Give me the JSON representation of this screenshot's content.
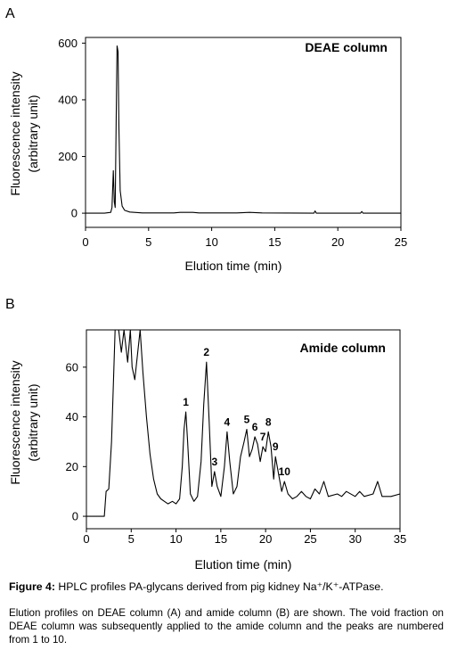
{
  "chart_data": [
    {
      "panel_label": "A",
      "type": "line",
      "title": "DEAE column",
      "xlabel": "Elution time (min)",
      "ylabel_lines": [
        "Fluorescence intensity",
        "(arbitrary unit)"
      ],
      "xlim": [
        0,
        25
      ],
      "ylim": [
        -50,
        620
      ],
      "x_ticks": [
        0,
        5,
        10,
        15,
        20,
        25
      ],
      "y_ticks": [
        0,
        200,
        400,
        600
      ],
      "grid": false,
      "trace": [
        [
          0,
          0
        ],
        [
          1.5,
          0
        ],
        [
          2.0,
          3
        ],
        [
          2.1,
          20
        ],
        [
          2.2,
          150
        ],
        [
          2.28,
          40
        ],
        [
          2.35,
          20
        ],
        [
          2.42,
          300
        ],
        [
          2.5,
          590
        ],
        [
          2.58,
          570
        ],
        [
          2.65,
          300
        ],
        [
          2.75,
          80
        ],
        [
          2.9,
          25
        ],
        [
          3.1,
          10
        ],
        [
          3.5,
          4
        ],
        [
          4.5,
          1
        ],
        [
          7,
          1
        ],
        [
          7.5,
          3
        ],
        [
          8.5,
          3
        ],
        [
          9,
          1
        ],
        [
          12,
          1
        ],
        [
          13,
          3
        ],
        [
          14,
          1
        ],
        [
          18.1,
          0
        ],
        [
          18.2,
          8
        ],
        [
          18.3,
          0
        ],
        [
          21.8,
          0
        ],
        [
          21.9,
          6
        ],
        [
          22.0,
          0
        ],
        [
          25,
          0
        ]
      ]
    },
    {
      "panel_label": "B",
      "type": "line",
      "title": "Amide column",
      "xlabel": "Elution time (min)",
      "ylabel_lines": [
        "Fluorescence intensity",
        "(arbitrary unit)"
      ],
      "xlim": [
        0,
        35
      ],
      "ylim": [
        -5,
        75
      ],
      "x_ticks": [
        0,
        5,
        10,
        15,
        20,
        25,
        30,
        35
      ],
      "y_ticks": [
        0,
        20,
        40,
        60
      ],
      "grid": false,
      "trace": [
        [
          0,
          0
        ],
        [
          2,
          0
        ],
        [
          2.2,
          10
        ],
        [
          2.5,
          11
        ],
        [
          2.8,
          30
        ],
        [
          3.2,
          75
        ],
        [
          3.6,
          75
        ],
        [
          3.9,
          66
        ],
        [
          4.2,
          75
        ],
        [
          4.6,
          62
        ],
        [
          4.9,
          75
        ],
        [
          5.1,
          60
        ],
        [
          5.4,
          55
        ],
        [
          5.7,
          65
        ],
        [
          6.0,
          75
        ],
        [
          6.3,
          58
        ],
        [
          6.7,
          40
        ],
        [
          7.1,
          25
        ],
        [
          7.5,
          15
        ],
        [
          7.9,
          9
        ],
        [
          8.3,
          7
        ],
        [
          8.7,
          6
        ],
        [
          9.1,
          5
        ],
        [
          9.6,
          6
        ],
        [
          10.0,
          5
        ],
        [
          10.4,
          7
        ],
        [
          10.7,
          20
        ],
        [
          10.9,
          35
        ],
        [
          11.1,
          42
        ],
        [
          11.3,
          30
        ],
        [
          11.6,
          9
        ],
        [
          12.0,
          6
        ],
        [
          12.4,
          8
        ],
        [
          12.8,
          22
        ],
        [
          13.1,
          45
        ],
        [
          13.4,
          62
        ],
        [
          13.7,
          38
        ],
        [
          14.0,
          12
        ],
        [
          14.3,
          18
        ],
        [
          14.6,
          12
        ],
        [
          15.0,
          8
        ],
        [
          15.4,
          20
        ],
        [
          15.7,
          34
        ],
        [
          16.0,
          22
        ],
        [
          16.4,
          9
        ],
        [
          16.8,
          12
        ],
        [
          17.2,
          24
        ],
        [
          17.6,
          30
        ],
        [
          17.9,
          35
        ],
        [
          18.2,
          24
        ],
        [
          18.5,
          27
        ],
        [
          18.8,
          32
        ],
        [
          19.1,
          29
        ],
        [
          19.4,
          22
        ],
        [
          19.7,
          28
        ],
        [
          20.0,
          26
        ],
        [
          20.3,
          34
        ],
        [
          20.6,
          28
        ],
        [
          20.9,
          15
        ],
        [
          21.1,
          24
        ],
        [
          21.4,
          18
        ],
        [
          21.8,
          10
        ],
        [
          22.1,
          14
        ],
        [
          22.5,
          9
        ],
        [
          23.0,
          7
        ],
        [
          23.5,
          8
        ],
        [
          24.0,
          10
        ],
        [
          24.5,
          8
        ],
        [
          25.0,
          7
        ],
        [
          25.5,
          11
        ],
        [
          26.0,
          9
        ],
        [
          26.5,
          14
        ],
        [
          27.0,
          8
        ],
        [
          28.0,
          9
        ],
        [
          28.5,
          8
        ],
        [
          29.0,
          10
        ],
        [
          30.0,
          8
        ],
        [
          30.5,
          10
        ],
        [
          31.0,
          8
        ],
        [
          32.0,
          9
        ],
        [
          32.5,
          14
        ],
        [
          33.0,
          8
        ],
        [
          34.0,
          8
        ],
        [
          35.0,
          9
        ]
      ],
      "peak_labels": [
        {
          "label": "1",
          "x": 11.1,
          "y": 42
        },
        {
          "label": "2",
          "x": 13.4,
          "y": 62
        },
        {
          "label": "3",
          "x": 14.3,
          "y": 18
        },
        {
          "label": "4",
          "x": 15.7,
          "y": 34
        },
        {
          "label": "5",
          "x": 17.9,
          "y": 35
        },
        {
          "label": "6",
          "x": 18.8,
          "y": 32
        },
        {
          "label": "7",
          "x": 19.7,
          "y": 28
        },
        {
          "label": "8",
          "x": 20.3,
          "y": 34
        },
        {
          "label": "9",
          "x": 21.1,
          "y": 24
        },
        {
          "label": "10",
          "x": 22.1,
          "y": 14
        }
      ]
    }
  ],
  "caption": {
    "figure_label": "Figure 4:",
    "figure_title": " HPLC profiles PA-glycans derived from pig kidney Na⁺/K⁺-ATPase.",
    "body": "Elution profiles on DEAE column (A) and amide column (B) are shown. The void fraction on DEAE column was subsequently applied to the amide column and the peaks are numbered from 1 to 10."
  }
}
